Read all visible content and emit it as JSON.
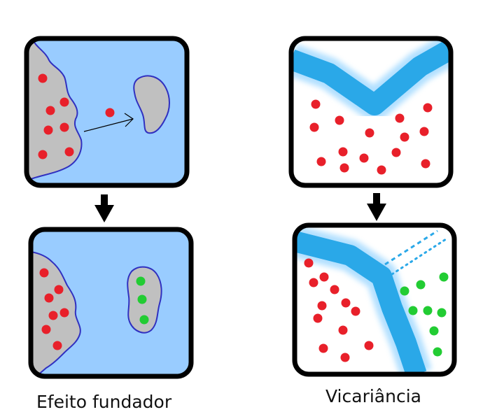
{
  "captions": {
    "founder_effect": "Efeito fundador",
    "vicariance": "Vicariância"
  },
  "colors": {
    "water": "#99ccff",
    "land": "#c0c0c0",
    "coast": "#3030c0",
    "river": "#2aa8e8",
    "river_glow": "#9fd8ff",
    "frame": "#000000",
    "ancestral_population": "#e8202a",
    "new_population": "#22cc33",
    "dry_land_white": "#ffffff"
  },
  "panels": [
    {
      "name": "founder-before",
      "description_icon": "island-migration-icon"
    },
    {
      "name": "founder-after",
      "description_icon": "island-colonized-icon"
    },
    {
      "name": "vicariance-before",
      "description_icon": "river-barrier-icon"
    },
    {
      "name": "vicariance-after",
      "description_icon": "river-split-icon"
    }
  ]
}
